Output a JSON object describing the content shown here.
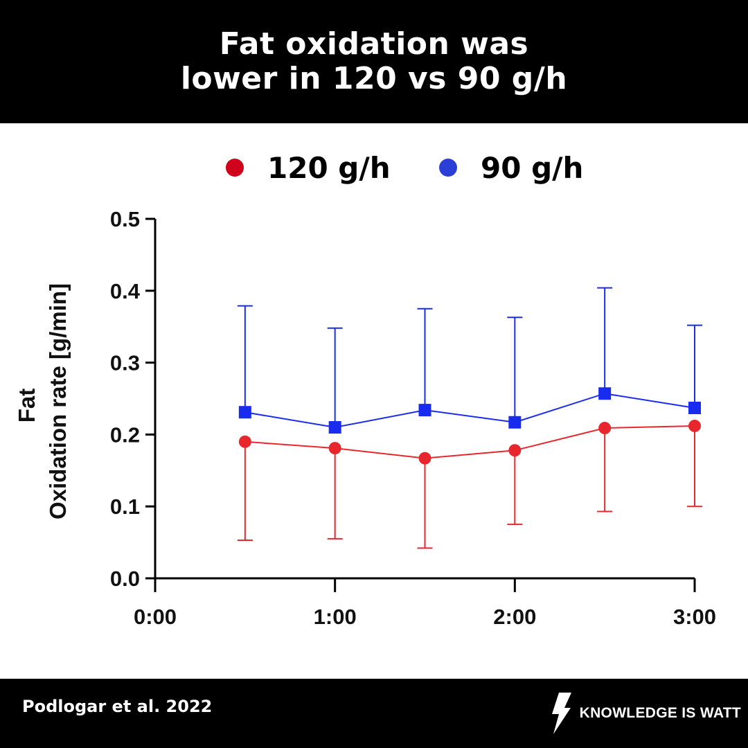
{
  "header": {
    "title_line1": "Fat oxidation was",
    "title_line2": "lower in 120 vs 90 g/h"
  },
  "legend": [
    {
      "label": "120 g/h",
      "color": "#d0021b"
    },
    {
      "label": "90 g/h",
      "color": "#2b3fd6"
    }
  ],
  "footer": {
    "source": "Podlogar et al. 2022",
    "brand": "KNOWLEDGE IS WATT",
    "brand_icon": "lightning-bolt-icon"
  },
  "chart_data": {
    "type": "line",
    "title": "",
    "xlabel": "",
    "ylabel_lines": [
      "Fat",
      "Oxidation rate [g/min]"
    ],
    "x": [
      0.5,
      1.0,
      1.5,
      2.0,
      2.5,
      3.0
    ],
    "xlim": [
      0,
      3
    ],
    "ylim": [
      0,
      0.5
    ],
    "x_ticks": [
      {
        "value": 0,
        "label": "0:00"
      },
      {
        "value": 1,
        "label": "1:00"
      },
      {
        "value": 2,
        "label": "2:00"
      },
      {
        "value": 3,
        "label": "3:00"
      }
    ],
    "y_ticks": [
      {
        "value": 0.0,
        "label": "0.0"
      },
      {
        "value": 0.1,
        "label": "0.1"
      },
      {
        "value": 0.2,
        "label": "0.2"
      },
      {
        "value": 0.3,
        "label": "0.3"
      },
      {
        "value": 0.4,
        "label": "0.4"
      },
      {
        "value": 0.5,
        "label": "0.5"
      }
    ],
    "series": [
      {
        "name": "120 g/h",
        "color": "#e8272d",
        "marker": "circle",
        "error_direction": "down",
        "values": [
          0.19,
          0.181,
          0.167,
          0.178,
          0.209,
          0.212
        ],
        "error": [
          0.137,
          0.126,
          0.125,
          0.103,
          0.116,
          0.112
        ]
      },
      {
        "name": "90 g/h",
        "color": "#1a2bf0",
        "marker": "square",
        "error_direction": "up",
        "values": [
          0.231,
          0.21,
          0.234,
          0.217,
          0.257,
          0.237
        ],
        "error": [
          0.148,
          0.138,
          0.141,
          0.146,
          0.147,
          0.115
        ]
      }
    ],
    "grid": false,
    "legend_position": "top-center"
  }
}
